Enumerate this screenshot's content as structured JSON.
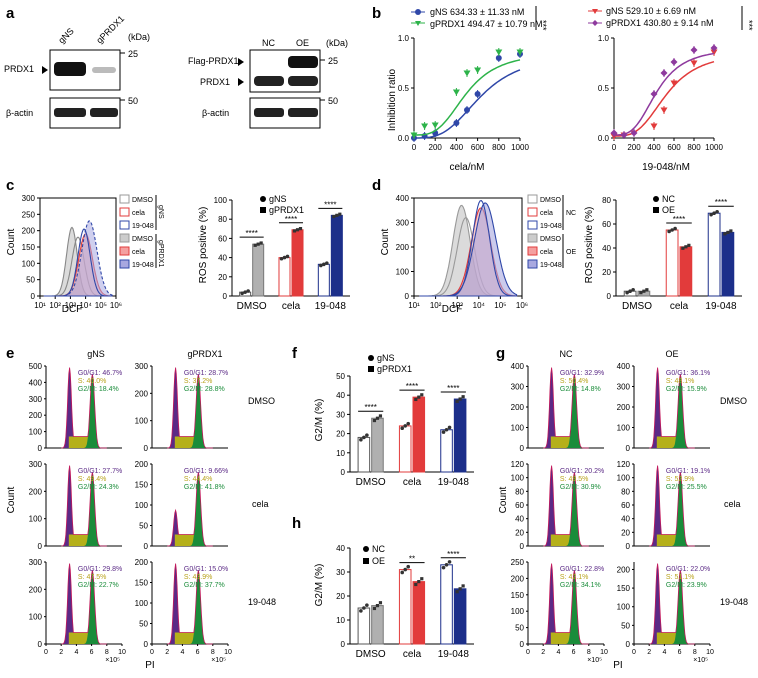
{
  "panels": {
    "a": {
      "letter": "a",
      "left": {
        "kda": "(kDa)",
        "lanes": [
          "gNS",
          "gPRDX1"
        ],
        "bands": [
          "PRDX1",
          "β-actin"
        ],
        "markers": [
          "25",
          "50"
        ]
      },
      "right": {
        "kda": "(kDa)",
        "lanes": [
          "NC",
          "OE"
        ],
        "bands": [
          "Flag-PRDX1",
          "PRDX1",
          "β-actin"
        ],
        "markers": [
          "25",
          "50"
        ]
      }
    },
    "b": {
      "letter": "b",
      "sig": "***",
      "left": {
        "legend": [
          "gNS  634.33 ± 11.33 nM",
          "gPRDX1  494.47 ± 10.79 nM"
        ],
        "xlabel": "cela/nM",
        "ylabel": "Inhibition ratio"
      },
      "right": {
        "legend": [
          "gNS 529.10 ± 6.69 nM",
          "gPRDX1  430.80 ± 9.14 nM"
        ],
        "xlabel": "19-048/nM"
      }
    },
    "c": {
      "letter": "c",
      "hist_ylabel": "Count",
      "hist_xlabel": "DCF",
      "legend": [
        "DMSO",
        "cela",
        "19-048",
        "DMSO",
        "cela",
        "19-048"
      ],
      "groups": [
        "gNS",
        "gPRDX1"
      ],
      "bar_ylabel": "ROS positive (%)",
      "bar_legend": [
        "gNS",
        "gPRDX1"
      ],
      "cats": [
        "DMSO",
        "cela",
        "19-048"
      ],
      "sig": [
        "****",
        "****",
        "****"
      ]
    },
    "d": {
      "letter": "d",
      "hist_ylabel": "Count",
      "hist_xlabel": "DCF",
      "legend": [
        "DMSO",
        "cela",
        "19-048",
        "DMSO",
        "cela",
        "19-048"
      ],
      "groups": [
        "NC",
        "OE"
      ],
      "bar_ylabel": "ROS positive (%)",
      "bar_legend": [
        "NC",
        "OE"
      ],
      "cats": [
        "DMSO",
        "cela",
        "19-048"
      ],
      "sig": [
        "****",
        "****"
      ]
    },
    "e": {
      "letter": "e",
      "cols": [
        "gNS",
        "gPRDX1"
      ],
      "rows": [
        "DMSO",
        "cela",
        "19-048"
      ],
      "ylabel": "Count",
      "xlabel": "PI"
    },
    "f": {
      "letter": "f",
      "ylabel": "G2/M (%)",
      "legend": [
        "gNS",
        "gPRDX1"
      ],
      "cats": [
        "DMSO",
        "cela",
        "19-048"
      ],
      "sig": [
        "****",
        "****",
        "****"
      ]
    },
    "g": {
      "letter": "g",
      "cols": [
        "NC",
        "OE"
      ],
      "rows": [
        "DMSO",
        "cela",
        "19-048"
      ],
      "ylabel": "Count",
      "xlabel": "PI"
    },
    "h": {
      "letter": "h",
      "ylabel": "G2/M (%)",
      "legend": [
        "NC",
        "OE"
      ],
      "cats": [
        "DMSO",
        "cela",
        "19-048"
      ],
      "sig": [
        "**",
        "****"
      ]
    }
  },
  "colors": {
    "blue": "#2f47a8",
    "green": "#2db34a",
    "red": "#e23b3b",
    "purple": "#8e3a9e",
    "navy": "#1c2f8a",
    "grey": "#b0b0b0",
    "cycle_g1": "#5b2a86",
    "cycle_s": "#b5b01a",
    "cycle_g2": "#1a8c3a"
  },
  "chart_data": [
    {
      "id": "b-left",
      "type": "line",
      "xlabel": "cela/nM",
      "ylabel": "Inhibition ratio",
      "xlim": [
        0,
        1000
      ],
      "ylim": [
        0,
        1.0
      ],
      "xticks": [
        0,
        200,
        400,
        600,
        800,
        1000
      ],
      "yticks": [
        0.0,
        0.5,
        1.0
      ],
      "series": [
        {
          "name": "gNS",
          "ic50": 634.33,
          "x": [
            0,
            100,
            200,
            400,
            500,
            600,
            800,
            1000
          ],
          "y": [
            0.0,
            0.02,
            0.05,
            0.15,
            0.28,
            0.44,
            0.8,
            0.84
          ]
        },
        {
          "name": "gPRDX1",
          "ic50": 494.47,
          "x": [
            0,
            100,
            200,
            400,
            500,
            600,
            800,
            1000
          ],
          "y": [
            0.03,
            0.12,
            0.13,
            0.46,
            0.65,
            0.68,
            0.86,
            0.86
          ]
        }
      ]
    },
    {
      "id": "b-right",
      "type": "line",
      "xlabel": "19-048/nM",
      "xlim": [
        0,
        1000
      ],
      "ylim": [
        0,
        1.0
      ],
      "xticks": [
        0,
        200,
        400,
        600,
        800,
        1000
      ],
      "yticks": [
        0.0,
        0.5,
        1.0
      ],
      "series": [
        {
          "name": "gNS",
          "ic50": 529.1,
          "x": [
            0,
            100,
            200,
            400,
            500,
            600,
            800,
            1000
          ],
          "y": [
            0.02,
            0.03,
            0.05,
            0.12,
            0.28,
            0.55,
            0.75,
            0.86
          ]
        },
        {
          "name": "gPRDX1",
          "ic50": 430.8,
          "x": [
            0,
            100,
            200,
            400,
            500,
            600,
            800,
            1000
          ],
          "y": [
            0.05,
            0.03,
            0.05,
            0.44,
            0.65,
            0.76,
            0.88,
            0.9
          ]
        }
      ]
    },
    {
      "id": "c-bar",
      "type": "bar",
      "ylabel": "ROS positive (%)",
      "ylim": [
        0,
        100
      ],
      "yticks": [
        0,
        20,
        40,
        60,
        80,
        100
      ],
      "categories": [
        "DMSO",
        "cela",
        "19-048"
      ],
      "series": [
        {
          "name": "gNS",
          "values": [
            4,
            40,
            33
          ]
        },
        {
          "name": "gPRDX1",
          "values": [
            54,
            69,
            84
          ]
        }
      ]
    },
    {
      "id": "d-bar",
      "type": "bar",
      "ylabel": "ROS positive (%)",
      "ylim": [
        0,
        80
      ],
      "yticks": [
        0,
        20,
        40,
        60,
        80
      ],
      "categories": [
        "DMSO",
        "cela",
        "19-048"
      ],
      "series": [
        {
          "name": "NC",
          "values": [
            4,
            55,
            69
          ]
        },
        {
          "name": "OE",
          "values": [
            4,
            41,
            53
          ]
        }
      ]
    },
    {
      "id": "f-bar",
      "type": "bar",
      "ylabel": "G2/M (%)",
      "ylim": [
        0,
        50
      ],
      "yticks": [
        0,
        10,
        20,
        30,
        40,
        50
      ],
      "categories": [
        "DMSO",
        "cela",
        "19-048"
      ],
      "series": [
        {
          "name": "gNS",
          "values": [
            18,
            24,
            22
          ]
        },
        {
          "name": "gPRDX1",
          "values": [
            28,
            39,
            38
          ]
        }
      ]
    },
    {
      "id": "h-bar",
      "type": "bar",
      "ylabel": "G2/M (%)",
      "ylim": [
        0,
        40
      ],
      "yticks": [
        0,
        10,
        20,
        30,
        40
      ],
      "categories": [
        "DMSO",
        "cela",
        "19-048"
      ],
      "series": [
        {
          "name": "NC",
          "values": [
            15,
            31,
            33
          ]
        },
        {
          "name": "OE",
          "values": [
            16,
            26,
            23
          ]
        }
      ]
    },
    {
      "id": "c-hist",
      "type": "area",
      "xlabel": "DCF",
      "ylabel": "Count",
      "ylim": [
        0,
        300
      ],
      "yticks": [
        0,
        50,
        100,
        150,
        200,
        250,
        300
      ],
      "xticks": [
        "10¹",
        "10²",
        "10³",
        "10⁴",
        "10⁵",
        "10⁶"
      ]
    },
    {
      "id": "d-hist",
      "type": "area",
      "xlabel": "DCF",
      "ylabel": "Count",
      "ylim": [
        0,
        400
      ],
      "yticks": [
        0,
        100,
        200,
        300,
        400
      ],
      "xticks": [
        "10¹",
        "10²",
        "10³",
        "10⁴",
        "10⁵",
        "10⁶"
      ]
    },
    {
      "id": "e-cycle",
      "type": "area",
      "xlabel": "PI",
      "panels": [
        {
          "col": "gNS",
          "row": "DMSO",
          "ymax": 500,
          "yticks": [
            0,
            100,
            200,
            300,
            400,
            500
          ],
          "g1": "G0/G1: 46.7%",
          "s": "S: 40.0%",
          "g2": "G2/M: 18.4%"
        },
        {
          "col": "gPRDX1",
          "row": "DMSO",
          "ymax": 300,
          "yticks": [
            0,
            100,
            200,
            300
          ],
          "g1": "G0/G1: 28.7%",
          "s": "S: 37.2%",
          "g2": "G2/M: 28.8%"
        },
        {
          "col": "gNS",
          "row": "cela",
          "ymax": 300,
          "yticks": [
            0,
            100,
            200,
            300
          ],
          "g1": "G0/G1: 27.7%",
          "s": "S: 49.4%",
          "g2": "G2/M: 24.3%"
        },
        {
          "col": "gPRDX1",
          "row": "cela",
          "ymax": 200,
          "yticks": [
            0,
            50,
            100,
            150,
            200
          ],
          "g1": "G0/G1: 9.66%",
          "s": "S: 44.4%",
          "g2": "G2/M: 41.8%"
        },
        {
          "col": "gNS",
          "row": "19-048",
          "ymax": 300,
          "yticks": [
            0,
            100,
            200,
            300
          ],
          "g1": "G0/G1: 29.8%",
          "s": "S: 47.5%",
          "g2": "G2/M: 22.7%"
        },
        {
          "col": "gPRDX1",
          "row": "19-048",
          "ymax": 200,
          "yticks": [
            0,
            50,
            100,
            150,
            200
          ],
          "g1": "G0/G1: 15.0%",
          "s": "S: 43.9%",
          "g2": "G2/M: 37.7%"
        }
      ],
      "xticks": [
        "0",
        "2",
        "4",
        "6",
        "8",
        "10"
      ],
      "xunit": "×10⁵"
    },
    {
      "id": "g-cycle",
      "type": "area",
      "xlabel": "PI",
      "panels": [
        {
          "col": "NC",
          "row": "DMSO",
          "ymax": 400,
          "yticks": [
            0,
            100,
            200,
            300,
            400
          ],
          "g1": "G0/G1: 32.9%",
          "s": "S: 50.4%",
          "g2": "G2/M: 14.8%"
        },
        {
          "col": "OE",
          "row": "DMSO",
          "ymax": 400,
          "yticks": [
            0,
            100,
            200,
            300,
            400
          ],
          "g1": "G0/G1: 36.1%",
          "s": "S: 48.1%",
          "g2": "G2/M: 15.9%"
        },
        {
          "col": "NC",
          "row": "cela",
          "ymax": 120,
          "yticks": [
            0,
            20,
            40,
            60,
            80,
            100,
            120
          ],
          "g1": "G0/G1: 20.2%",
          "s": "S: 49.5%",
          "g2": "G2/M: 30.9%"
        },
        {
          "col": "OE",
          "row": "cela",
          "ymax": 120,
          "yticks": [
            0,
            20,
            40,
            60,
            80,
            100,
            120
          ],
          "g1": "G0/G1: 19.1%",
          "s": "S: 52.9%",
          "g2": "G2/M: 25.5%"
        },
        {
          "col": "NC",
          "row": "19-048",
          "ymax": 250,
          "yticks": [
            0,
            50,
            100,
            150,
            200,
            250
          ],
          "g1": "G0/G1: 22.8%",
          "s": "S: 42.1%",
          "g2": "G2/M: 34.1%"
        },
        {
          "col": "OE",
          "row": "19-048",
          "ymax": 220,
          "yticks": [
            0,
            50,
            100,
            150,
            200
          ],
          "g1": "G0/G1: 22.0%",
          "s": "S: 51.1%",
          "g2": "G2/M: 23.9%"
        }
      ],
      "xticks": [
        "0",
        "2",
        "4",
        "6",
        "8",
        "10"
      ],
      "xunit": "×10⁵"
    }
  ]
}
